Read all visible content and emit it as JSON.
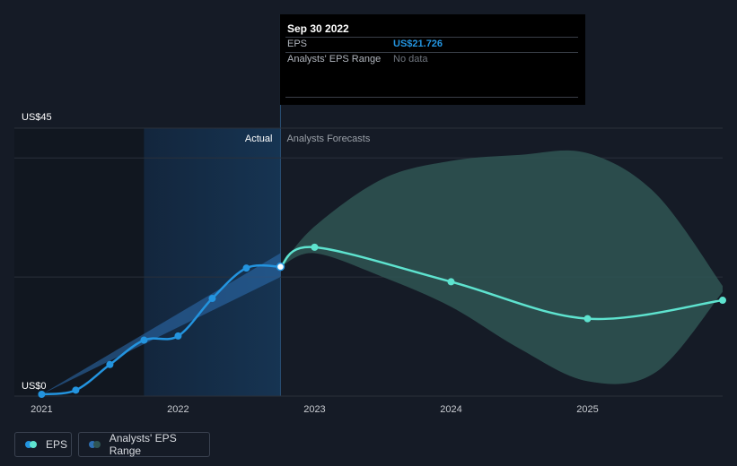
{
  "chart_data": {
    "type": "line",
    "y_axis": {
      "unit": "US$",
      "top_label": "US$45",
      "bottom_label": "US$0",
      "ylim": [
        0,
        45
      ],
      "gridlines": [
        0,
        20,
        40,
        45
      ]
    },
    "x_axis": {
      "ticks": [
        "2021",
        "2022",
        "2023",
        "2024",
        "2025"
      ],
      "tick_positions": [
        2021.0,
        2022.0,
        2023.0,
        2024.0,
        2025.0
      ],
      "xlim": [
        2020.8,
        2025.99
      ]
    },
    "regions": {
      "actual_label": "Actual",
      "forecast_label": "Analysts Forecasts",
      "actual_highlight_start": 2021.75,
      "divider": 2022.75
    },
    "series": [
      {
        "name": "EPS",
        "color": "#2394df",
        "kind": "actual",
        "points": [
          {
            "x": 2021.0,
            "y": 0.3
          },
          {
            "x": 2021.25,
            "y": 1.0
          },
          {
            "x": 2021.5,
            "y": 5.3
          },
          {
            "x": 2021.75,
            "y": 9.4
          },
          {
            "x": 2022.0,
            "y": 10.1
          },
          {
            "x": 2022.25,
            "y": 16.4
          },
          {
            "x": 2022.5,
            "y": 21.5
          },
          {
            "x": 2022.75,
            "y": 21.726
          }
        ]
      },
      {
        "name": "EPS",
        "color": "#5ee3cf",
        "kind": "forecast",
        "points": [
          {
            "x": 2022.75,
            "y": 21.726
          },
          {
            "x": 2023.0,
            "y": 25.0
          },
          {
            "x": 2024.0,
            "y": 19.2
          },
          {
            "x": 2025.0,
            "y": 13.0
          },
          {
            "x": 2025.99,
            "y": 16.1
          }
        ]
      }
    ],
    "past_range_band": {
      "color": "#2d6fb2",
      "x": [
        2021.0,
        2022.75
      ],
      "upper": [
        0.3,
        24.0
      ],
      "lower": [
        0.3,
        20.0
      ]
    },
    "analyst_range": {
      "name": "Analysts' EPS Range",
      "color": "#2f5553",
      "x": [
        2022.75,
        2023.0,
        2023.5,
        2024.0,
        2024.5,
        2025.0,
        2025.5,
        2025.99
      ],
      "upper": [
        21.726,
        28.5,
        36.5,
        39.5,
        40.5,
        40.8,
        34.0,
        18.5
      ],
      "lower": [
        21.726,
        24.0,
        20.0,
        15.0,
        8.0,
        2.5,
        4.0,
        17.5
      ]
    }
  },
  "tooltip": {
    "date": "Sep 30 2022",
    "rows": [
      {
        "label": "EPS",
        "value": "US$21.726",
        "value_color": "#2394df"
      },
      {
        "label": "Analysts' EPS Range",
        "value": "No data",
        "value_color": "#6f757e"
      }
    ]
  },
  "legend": {
    "eps_label": "EPS",
    "range_label": "Analysts' EPS Range",
    "eps_colors": [
      "#2394df",
      "#5ee3cf"
    ],
    "range_colors": [
      "#2d6fb2",
      "#2f5553"
    ]
  }
}
